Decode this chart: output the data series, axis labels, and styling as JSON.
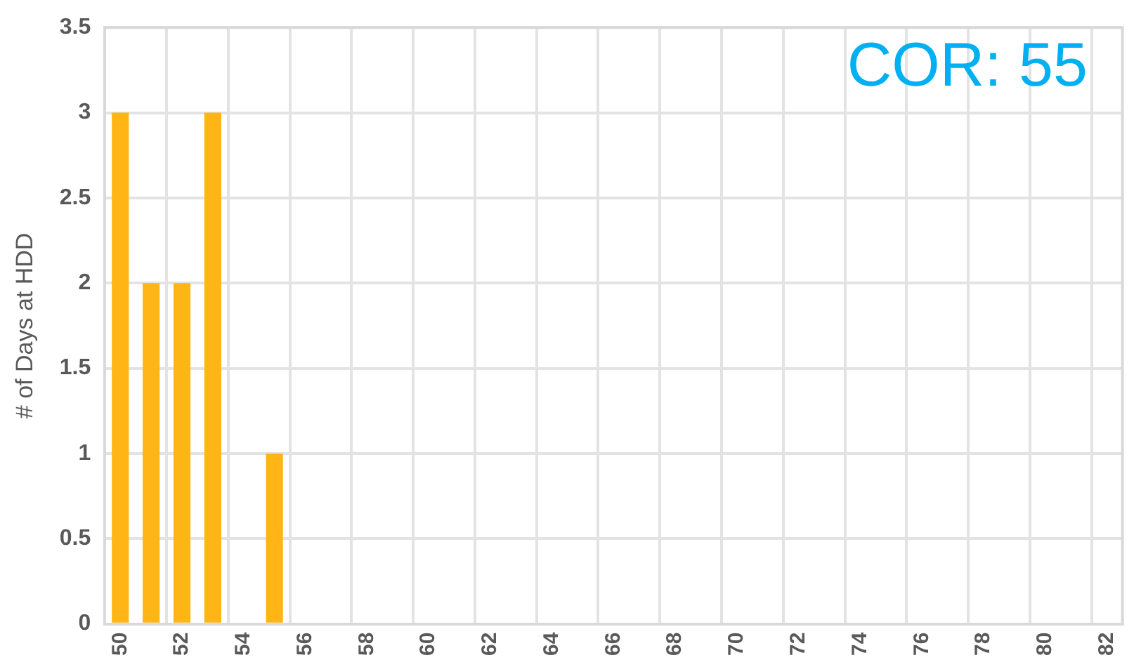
{
  "chart_data": {
    "type": "bar",
    "ylabel": "# of Days at HDD",
    "categories": [
      "50",
      null,
      "52",
      null,
      "54",
      null,
      "56",
      null,
      "58",
      null,
      "60",
      null,
      "62",
      null,
      "64",
      null,
      "66",
      null,
      "68",
      null,
      "70",
      null,
      "72",
      null,
      "74",
      null,
      "76",
      null,
      "78",
      null,
      "80",
      null,
      "82"
    ],
    "values": [
      3,
      2,
      2,
      3,
      0,
      1,
      0,
      0,
      0,
      0,
      0,
      0,
      0,
      0,
      0,
      0,
      0,
      0,
      0,
      0,
      0,
      0,
      0,
      0,
      0,
      0,
      0,
      0,
      0,
      0,
      0,
      0,
      0
    ],
    "color": "#ffb515",
    "ylim": [
      0,
      3.5
    ],
    "yticks": [
      0,
      0.5,
      1,
      1.5,
      2,
      2.5,
      3,
      3.5
    ],
    "grid": true,
    "legend": false,
    "annotations": [
      "COR: 55"
    ]
  }
}
